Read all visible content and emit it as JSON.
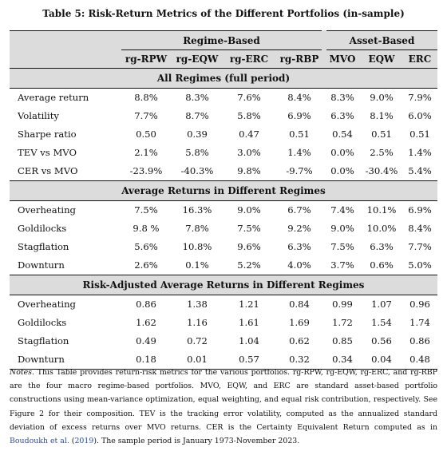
{
  "caption": "Table 5: Risk-Return Metrics of the Different Portfolios (in-sample)",
  "groups": {
    "regime": "Regime-Based",
    "asset": "Asset-Based"
  },
  "columns": [
    "rg-RPW",
    "rg-EQW",
    "rg-ERC",
    "rg-RBP",
    "MVO",
    "EQW",
    "ERC"
  ],
  "sections": [
    {
      "title": "All Regimes (full period)",
      "rows": [
        {
          "label": "Average return",
          "values": [
            "8.8%",
            "8.3%",
            "7.6%",
            "8.4%",
            "8.3%",
            "9.0%",
            "7.9%"
          ]
        },
        {
          "label": "Volatility",
          "values": [
            "7.7%",
            "8.7%",
            "5.8%",
            "6.9%",
            "6.3%",
            "8.1%",
            "6.0%"
          ]
        },
        {
          "label": "Sharpe ratio",
          "values": [
            "0.50",
            "0.39",
            "0.47",
            "0.51",
            "0.54",
            "0.51",
            "0.51"
          ]
        },
        {
          "label": "TEV vs MVO",
          "values": [
            "2.1%",
            "5.8%",
            "3.0%",
            "1.4%",
            "0.0%",
            "2.5%",
            "1.4%"
          ]
        },
        {
          "label": "CER vs MVO",
          "values": [
            "-23.9%",
            "-40.3%",
            "9.8%",
            "-9.7%",
            "0.0%",
            "-30.4%",
            "5.4%"
          ]
        }
      ]
    },
    {
      "title": "Average Returns in Different Regimes",
      "rows": [
        {
          "label": "Overheating",
          "values": [
            "7.5%",
            "16.3%",
            "9.0%",
            "6.7%",
            "7.4%",
            "10.1%",
            "6.9%"
          ]
        },
        {
          "label": "Goldilocks",
          "values": [
            "9.8 %",
            "7.8%",
            "7.5%",
            "9.2%",
            "9.0%",
            "10.0%",
            "8.4%"
          ]
        },
        {
          "label": "Stagflation",
          "values": [
            "5.6%",
            "10.8%",
            "9.6%",
            "6.3%",
            "7.5%",
            "6.3%",
            "7.7%"
          ]
        },
        {
          "label": "Downturn",
          "values": [
            "2.6%",
            "0.1%",
            "5.2%",
            "4.0%",
            "3.7%",
            "0.6%",
            "5.0%"
          ]
        }
      ]
    },
    {
      "title": "Risk-Adjusted Average Returns in Different Regimes",
      "rows": [
        {
          "label": "Overheating",
          "values": [
            "0.86",
            "1.38",
            "1.21",
            "0.84",
            "0.99",
            "1.07",
            "0.96"
          ]
        },
        {
          "label": "Goldilocks",
          "values": [
            "1.62",
            "1.16",
            "1.61",
            "1.69",
            "1.72",
            "1.54",
            "1.74"
          ]
        },
        {
          "label": "Stagflation",
          "values": [
            "0.49",
            "0.72",
            "1.04",
            "0.62",
            "0.85",
            "0.56",
            "0.86"
          ]
        },
        {
          "label": "Downturn",
          "values": [
            "0.18",
            "0.01",
            "0.57",
            "0.32",
            "0.34",
            "0.04",
            "0.48"
          ]
        }
      ]
    }
  ],
  "notes": {
    "lead": "Notes.",
    "text1": " This Table provides return-risk metrics for the various portfolios. rg-RPW, rg-EQW, rg-ERC, and rg-RBP are the four macro regime-based portfolios. MVO, EQW, and ERC are standard asset-based portfolio constructions using mean-variance optimization, equal weighting, and equal risk contribution, respectively. See Figure 2 for their composition. TEV is the tracking error volatility, computed as the annualized standard deviation of excess returns over MVO returns. CER is the Certainty Equivalent Return computed as in ",
    "cite_author": "Boudoukh et al.",
    "cite_open": " (",
    "cite_year": "2019",
    "text2": "). The sample period is January 1973-November 2023."
  }
}
